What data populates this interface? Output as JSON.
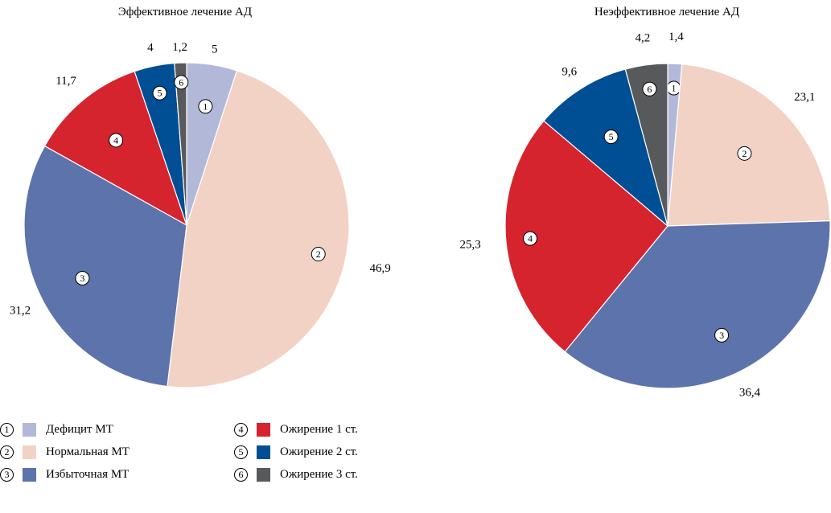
{
  "chart_data": [
    {
      "type": "pie",
      "title": "Эффективное лечение АД",
      "categories": [
        "1",
        "2",
        "3",
        "4",
        "5",
        "6"
      ],
      "values": [
        5,
        46.9,
        31.2,
        11.7,
        4,
        1.2
      ],
      "value_labels": [
        "5",
        "46,9",
        "31,2",
        "11,7",
        "4",
        "1,2"
      ]
    },
    {
      "type": "pie",
      "title": "Неэффективное лечение АД",
      "categories": [
        "1",
        "2",
        "3",
        "4",
        "5",
        "6"
      ],
      "values": [
        1.4,
        23.1,
        36.4,
        25.3,
        9.6,
        4.2
      ],
      "value_labels": [
        "1,4",
        "23,1",
        "36,4",
        "25,3",
        "9,6",
        "4,2"
      ]
    }
  ],
  "colors": [
    "#b2b9d8",
    "#f2d2c5",
    "#5c73ab",
    "#d6242e",
    "#004e93",
    "#58595b"
  ],
  "legend": [
    {
      "num": "1",
      "label": "Дефицит МТ",
      "color": "#b2b9d8"
    },
    {
      "num": "2",
      "label": "Нормальная МТ",
      "color": "#f2d2c5"
    },
    {
      "num": "3",
      "label": "Избыточная МТ",
      "color": "#5c73ab"
    },
    {
      "num": "4",
      "label": "Ожирение 1 ст.",
      "color": "#d6242e"
    },
    {
      "num": "5",
      "label": "Ожирение 2 ст.",
      "color": "#004e93"
    },
    {
      "num": "6",
      "label": "Ожирение 3 ст.",
      "color": "#58595b"
    }
  ]
}
